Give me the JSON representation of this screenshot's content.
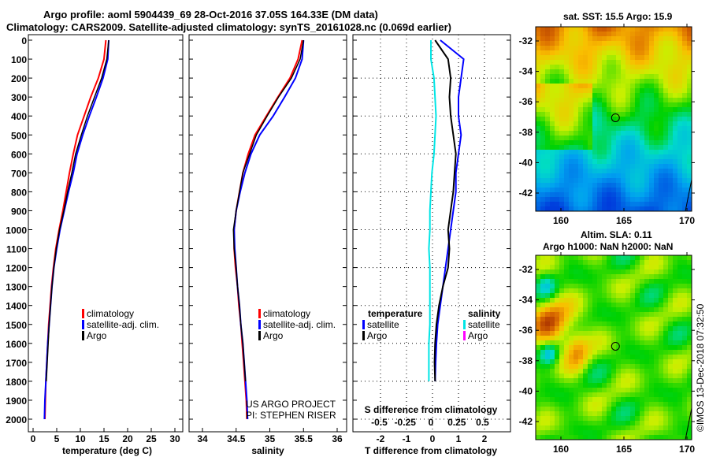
{
  "title_line1": "Argo profile: aoml 5904439_69 28-Oct-2016 37.05S 164.33E (DM data)",
  "title_line2": "Climatology: CARS2009. Satellite-adjusted climatology: synTS_20161028.nc (0.069d earlier)",
  "credit_line1": "US ARGO PROJECT",
  "credit_line2": "PI: STEPHEN RISER",
  "timestamp": "©IMOS 13-Dec-2018 07:32:50",
  "colors": {
    "climatology": "#ff0000",
    "satellite": "#0000ff",
    "argo": "#000000",
    "sat_salinity": "#00e5e5",
    "argo_salinity": "#ff00ff"
  },
  "chart_data": [
    {
      "type": "line",
      "name": "temperature-profile",
      "xlabel": "temperature (deg C)",
      "xlim": [
        -1,
        31
      ],
      "ylim": [
        2050,
        -20
      ],
      "xticks": [
        "0",
        "5",
        "10",
        "15",
        "20",
        "25",
        "30"
      ],
      "yticks": [
        "0",
        "100",
        "200",
        "300",
        "400",
        "500",
        "600",
        "700",
        "800",
        "900",
        "1000",
        "1100",
        "1200",
        "1300",
        "1400",
        "1500",
        "1600",
        "1700",
        "1800",
        "1900",
        "2000"
      ],
      "depth": [
        0,
        100,
        200,
        300,
        400,
        500,
        600,
        700,
        800,
        900,
        1000,
        1100,
        1200,
        1300,
        1400,
        1500,
        1600,
        1700,
        1800,
        1900,
        2000
      ],
      "series": [
        {
          "name": "climatology",
          "color": "#ff0000",
          "values": [
            15.4,
            15.0,
            13.8,
            12.2,
            10.8,
            9.4,
            8.5,
            7.7,
            7.0,
            6.3,
            5.5,
            4.8,
            4.3,
            3.9,
            3.6,
            3.3,
            3.1,
            2.9,
            2.7,
            2.6,
            2.5
          ]
        },
        {
          "name": "satellite-adj. clim.",
          "color": "#0000ff",
          "values": [
            16.0,
            15.8,
            14.8,
            13.4,
            11.9,
            10.5,
            9.3,
            8.5,
            7.5,
            6.6,
            5.7,
            5.0,
            4.4,
            4.0,
            3.7,
            3.4,
            3.1,
            2.9,
            2.7,
            2.5,
            2.4
          ]
        },
        {
          "name": "Argo",
          "color": "#000000",
          "values": [
            16.0,
            15.6,
            14.5,
            13.0,
            11.5,
            10.2,
            9.0,
            8.2,
            7.3,
            6.5,
            5.6,
            4.9,
            4.4,
            4.0,
            3.7,
            3.4,
            3.2,
            3.0,
            2.8,
            null,
            null
          ]
        }
      ]
    },
    {
      "type": "line",
      "name": "salinity-profile",
      "xlabel": "salinity",
      "xlim": [
        33.8,
        36.1
      ],
      "ylim": [
        2050,
        -20
      ],
      "xticks": [
        "34",
        "34.5",
        "35",
        "35.5",
        "36"
      ],
      "series": [
        {
          "name": "climatology",
          "color": "#ff0000",
          "values": [
            35.48,
            35.42,
            35.3,
            35.12,
            34.95,
            34.78,
            34.68,
            34.6,
            34.55,
            34.5,
            34.47,
            34.47,
            34.49,
            34.52,
            34.54,
            34.57,
            34.59,
            34.61,
            34.63,
            34.65,
            34.66
          ]
        },
        {
          "name": "satellite-adj. clim.",
          "color": "#0000ff",
          "values": [
            35.5,
            35.48,
            35.38,
            35.22,
            35.05,
            34.85,
            34.72,
            34.63,
            34.56,
            34.5,
            34.47,
            34.48,
            34.5,
            34.52,
            34.55,
            34.57,
            34.6,
            34.62,
            34.64,
            34.66,
            34.67
          ]
        },
        {
          "name": "Argo",
          "color": "#000000",
          "values": [
            35.5,
            35.45,
            35.32,
            35.13,
            34.96,
            34.8,
            34.7,
            34.6,
            34.55,
            34.5,
            34.46,
            34.47,
            34.5,
            34.52,
            34.55,
            34.57,
            34.6,
            34.62,
            34.64,
            null,
            null
          ]
        }
      ]
    },
    {
      "type": "line",
      "name": "difference-profile",
      "xlabel": "T difference from climatology",
      "x2label": "S difference from climatology",
      "xlim": [
        -3,
        3
      ],
      "ylim": [
        2050,
        -20
      ],
      "xticks": [
        "-2",
        "-1",
        "0",
        "1",
        "2"
      ],
      "x2ticks": [
        "-0.5",
        "-0.25",
        "0",
        "0.25",
        "0.5"
      ],
      "legend_temperature": {
        "title": "temperature",
        "satellite": "satellite",
        "argo": "Argo"
      },
      "legend_salinity": {
        "title": "salinity",
        "satellite": "satellite",
        "argo": "Argo"
      },
      "series": [
        {
          "name": "T satellite",
          "color": "#0000ff",
          "values": [
            0.3,
            1.2,
            1.1,
            1.0,
            1.0,
            1.1,
            1.0,
            0.9,
            0.9,
            0.8,
            0.7,
            0.6,
            0.5,
            0.4,
            0.3,
            0.2,
            0.15,
            0.12,
            0.1,
            null,
            null
          ]
        },
        {
          "name": "T Argo",
          "color": "#000000",
          "values": [
            0.1,
            0.6,
            0.7,
            0.65,
            0.7,
            0.8,
            0.9,
            0.85,
            0.8,
            0.7,
            0.6,
            0.65,
            0.6,
            0.4,
            0.25,
            0.15,
            0.1,
            0.08,
            0.1,
            null,
            null
          ]
        },
        {
          "name": "S satellite",
          "color": "#00e5e5",
          "values": [
            0.0,
            0.0,
            0.03,
            0.04,
            0.05,
            0.04,
            0.03,
            0.01,
            0.0,
            -0.01,
            -0.01,
            -0.02,
            -0.01,
            -0.01,
            -0.01,
            -0.01,
            -0.02,
            -0.02,
            -0.02,
            null,
            null
          ]
        }
      ]
    }
  ],
  "map_sst": {
    "title": "sat. SST: 15.5 Argo: 15.9",
    "lat_ticks": [
      "-32",
      "-34",
      "-36",
      "-38",
      "-40",
      "-42"
    ],
    "lon_ticks": [
      "160",
      "165",
      "170"
    ],
    "float_lon": 164.33,
    "float_lat": -37.05
  },
  "map_sla": {
    "title_line1": "Altim. SLA: 0.11",
    "title_line2": "Argo h1000: NaN h2000: NaN",
    "lat_ticks": [
      "-32",
      "-34",
      "-36",
      "-38",
      "-40",
      "-42"
    ],
    "lon_ticks": [
      "160",
      "165",
      "170"
    ],
    "float_lon": 164.33,
    "float_lat": -37.05
  },
  "legend": {
    "climatology": "climatology",
    "satellite": "satellite-adj. clim.",
    "argo": "Argo"
  }
}
